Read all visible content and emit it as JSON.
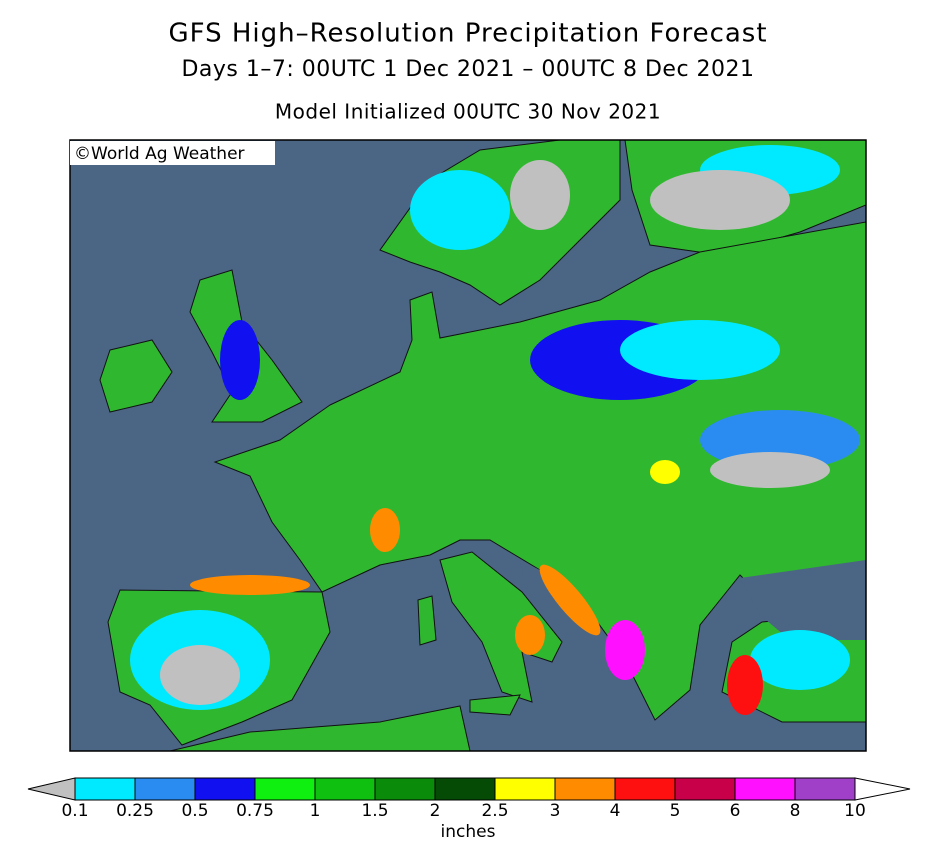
{
  "header": {
    "title": "GFS High–Resolution Precipitation Forecast",
    "subtitle": "Days 1–7: 00UTC 1 Dec 2021 – 00UTC 8 Dec 2021",
    "initialized": "Model Initialized 00UTC 30 Nov 2021"
  },
  "map": {
    "credit": "©World Ag Weather"
  },
  "colorbar": {
    "labels": [
      "0.1",
      "0.25",
      "0.5",
      "0.75",
      "1",
      "1.5",
      "2",
      "2.5",
      "3",
      "4",
      "5",
      "6",
      "8",
      "10"
    ],
    "colors": [
      "#00eaff",
      "#2a8cf0",
      "#1010f0",
      "#10f010",
      "#10c010",
      "#0a8c0a",
      "#054a05",
      "#ffff00",
      "#ff8c00",
      "#ff1010",
      "#c8004a",
      "#ff10ff",
      "#a040c8"
    ],
    "under_color": "#c0c0c0",
    "over_color": "#ffffff",
    "unit": "inches"
  }
}
